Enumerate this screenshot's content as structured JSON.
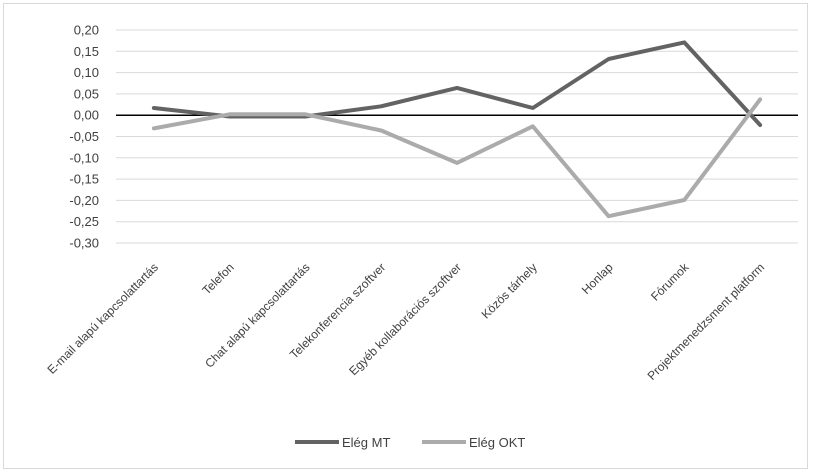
{
  "chart_data": {
    "type": "line",
    "categories": [
      "E-mail alapú kapcsolattartás",
      "Telefon",
      "Chat alapú kapcsolattartás",
      "Telekonferencia szoftver",
      "Egyéb kollaborációs szoftver",
      "Közös tárhely",
      "Honlap",
      "Fórumok",
      "Projektmenedzsment platform"
    ],
    "series": [
      {
        "name": "Elég MT",
        "color": "#636363",
        "values": [
          0.017,
          -0.003,
          -0.003,
          0.021,
          0.064,
          0.017,
          0.132,
          0.171,
          -0.023
        ]
      },
      {
        "name": "Elég OKT",
        "color": "#ababab",
        "values": [
          -0.031,
          0.002,
          0.002,
          -0.036,
          -0.112,
          -0.026,
          -0.237,
          -0.199,
          0.037
        ]
      }
    ],
    "y_ticks": [
      "0,20",
      "0,15",
      "0,10",
      "0,05",
      "0,00",
      "-0,05",
      "-0,10",
      "-0,15",
      "-0,20",
      "-0,25",
      "-0,30"
    ],
    "ylim": [
      -0.3,
      0.2
    ],
    "grid": true,
    "legend_position": "bottom",
    "title": "",
    "xlabel": "",
    "ylabel": ""
  }
}
